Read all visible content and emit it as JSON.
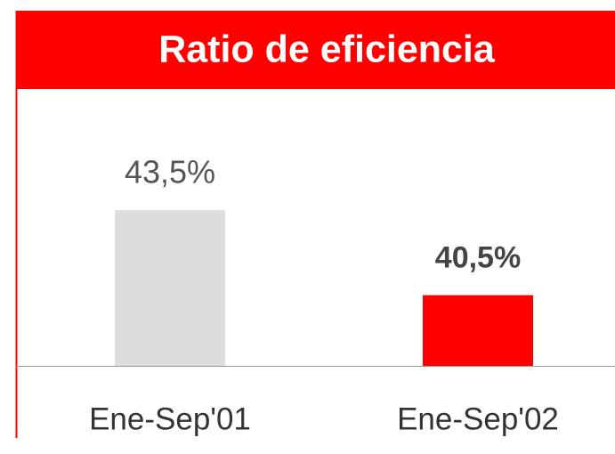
{
  "chart_data": {
    "type": "bar",
    "title": "Ratio de eficiencia",
    "categories": [
      "Ene-Sep'01",
      "Ene-Sep'02"
    ],
    "values": [
      43.5,
      40.5
    ],
    "value_labels": [
      "43,5%",
      "40,5%"
    ],
    "colors": [
      "#dddddd",
      "#ff0000"
    ],
    "ylim": [
      38,
      47
    ]
  }
}
